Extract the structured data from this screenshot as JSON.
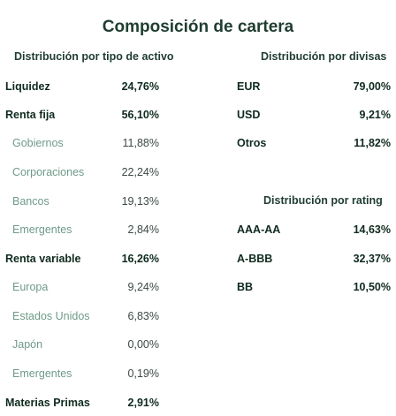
{
  "title": "Composición de cartera",
  "asset_section": {
    "heading": "Distribución por tipo de activo",
    "rows": [
      {
        "label": "Liquidez",
        "value": "24,76%",
        "sub": false
      },
      {
        "label": "Renta fija",
        "value": "56,10%",
        "sub": false
      },
      {
        "label": "Gobiernos",
        "value": "11,88%",
        "sub": true
      },
      {
        "label": "Corporaciones",
        "value": "22,24%",
        "sub": true
      },
      {
        "label": "Bancos",
        "value": "19,13%",
        "sub": true
      },
      {
        "label": "Emergentes",
        "value": "2,84%",
        "sub": true
      },
      {
        "label": "Renta variable",
        "value": "16,26%",
        "sub": false
      },
      {
        "label": "Europa",
        "value": "9,24%",
        "sub": true
      },
      {
        "label": "Estados Unidos",
        "value": "6,83%",
        "sub": true
      },
      {
        "label": "Japón",
        "value": "0,00%",
        "sub": true
      },
      {
        "label": "Emergentes",
        "value": "0,19%",
        "sub": true
      },
      {
        "label": "Materias Primas",
        "value": "2,91%",
        "sub": false
      }
    ]
  },
  "currency_section": {
    "heading": "Distribución por divisas",
    "rows": [
      {
        "label": "EUR",
        "value": "79,00%"
      },
      {
        "label": "USD",
        "value": "9,21%"
      },
      {
        "label": "Otros",
        "value": "11,82%"
      }
    ]
  },
  "rating_section": {
    "heading": "Distribución por rating",
    "rows": [
      {
        "label": "AAA-AA",
        "value": "14,63%"
      },
      {
        "label": "A-BBB",
        "value": "32,37%"
      },
      {
        "label": "BB",
        "value": "10,50%"
      }
    ]
  }
}
